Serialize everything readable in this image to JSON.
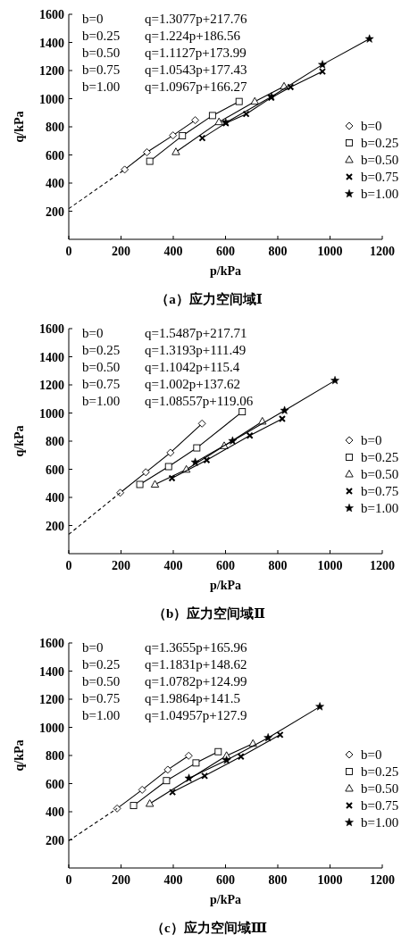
{
  "chart_data": [
    {
      "type": "line",
      "title": "（a）应力空间域Ⅰ",
      "xlabel": "p/kPa",
      "ylabel": "q/kPa",
      "xlim": [
        0,
        1200
      ],
      "ylim": [
        0,
        1600
      ],
      "xticks": [
        0,
        200,
        400,
        600,
        800,
        1000,
        1200
      ],
      "yticks": [
        200,
        400,
        600,
        800,
        1000,
        1200,
        1400,
        1600
      ],
      "legend": "right",
      "annotations": [
        "b=0 q=1.3077p+217.76",
        "b=0.25 q=1.224p+186.56",
        "b=0.50 q=1.1127p+173.99",
        "b=0.75 q=1.0543p+177.43",
        "b=1.00 q=1.0967p+166.27"
      ],
      "series": [
        {
          "name": "b=0",
          "color": "#000000",
          "marker": "diamond",
          "x": [
            214,
            299,
            399,
            484
          ],
          "values": [
            496,
            619,
            739,
            847
          ]
        },
        {
          "name": "b=0.25",
          "color": "#000000",
          "marker": "square",
          "x": [
            310,
            435,
            550,
            652
          ],
          "values": [
            555,
            737,
            880,
            980
          ]
        },
        {
          "name": "b=0.50",
          "color": "#000000",
          "marker": "triangle",
          "x": [
            410,
            575,
            712,
            824
          ],
          "values": [
            621,
            834,
            980,
            1087
          ]
        },
        {
          "name": "b=0.75",
          "color": "#000000",
          "marker": "cross",
          "x": [
            511,
            601,
            679,
            775,
            849,
            971
          ],
          "values": [
            720,
            826,
            891,
            1007,
            1083,
            1193
          ]
        },
        {
          "name": "b=1.00",
          "color": "#000000",
          "marker": "star",
          "x": [
            601,
            776,
            971,
            1151
          ],
          "values": [
            830,
            1014,
            1242,
            1425
          ]
        },
        {
          "color": "#000000",
          "marker": "none",
          "line_style": "dashed",
          "x": [
            0,
            214
          ],
          "values": [
            218,
            496
          ]
        }
      ]
    },
    {
      "type": "line",
      "title": "（b）应力空间域Ⅱ",
      "xlabel": "p/kPa",
      "ylabel": "q/kPa",
      "xlim": [
        0,
        1200
      ],
      "ylim": [
        0,
        1600
      ],
      "xticks": [
        0,
        200,
        400,
        600,
        800,
        1000,
        1200
      ],
      "yticks": [
        200,
        400,
        600,
        800,
        1000,
        1200,
        1400,
        1600
      ],
      "legend": "right",
      "annotations": [
        "b=0 q=1.5487p+217.71",
        "b=0.25 q=1.3193p+111.49",
        "b=0.50 q=1.1042p+115.4",
        "b=0.75 q=1.002p+137.62",
        "b=1.00 q=1.08557p+119.06"
      ],
      "series": [
        {
          "name": "b=0",
          "color": "#000000",
          "marker": "diamond",
          "x": [
            197,
            295,
            389,
            510
          ],
          "values": [
            433,
            579,
            718,
            925
          ]
        },
        {
          "name": "b=0.25",
          "color": "#000000",
          "marker": "square",
          "x": [
            272,
            382,
            490,
            664
          ],
          "values": [
            492,
            619,
            752,
            1009
          ]
        },
        {
          "name": "b=0.50",
          "color": "#000000",
          "marker": "triangle",
          "x": [
            330,
            450,
            595,
            741
          ],
          "values": [
            492,
            598,
            766,
            940
          ]
        },
        {
          "name": "b=0.75",
          "color": "#000000",
          "marker": "cross",
          "x": [
            395,
            528,
            693,
            817
          ],
          "values": [
            536,
            665,
            840,
            959
          ]
        },
        {
          "name": "b=1.00",
          "color": "#000000",
          "marker": "star",
          "x": [
            484,
            627,
            826,
            1019
          ],
          "values": [
            650,
            802,
            1018,
            1231
          ]
        },
        {
          "color": "#000000",
          "marker": "none",
          "line_style": "dashed",
          "x": [
            0,
            197
          ],
          "values": [
            137,
            433
          ]
        }
      ]
    },
    {
      "type": "line",
      "title": "（c）应力空间域Ⅲ",
      "xlabel": "p/kPa",
      "ylabel": "q/kPa",
      "xlim": [
        0,
        1200
      ],
      "ylim": [
        0,
        1600
      ],
      "xticks": [
        0,
        200,
        400,
        600,
        800,
        1000,
        1200
      ],
      "yticks": [
        200,
        400,
        600,
        800,
        1000,
        1200,
        1400,
        1600
      ],
      "legend": "right",
      "annotations": [
        "b=0 q=1.3655p+165.96",
        "b=0.25 q=1.1831p+148.62",
        "b=0.50 q=1.0782p+124.99",
        "b=0.75 q=1.9864p+141.5",
        "b=1.00 q=1.04957p+127.9"
      ],
      "series": [
        {
          "name": "b=0",
          "color": "#000000",
          "marker": "diamond",
          "x": [
            185,
            281,
            379,
            459
          ],
          "values": [
            423,
            556,
            699,
            798
          ]
        },
        {
          "name": "b=0.25",
          "color": "#000000",
          "marker": "square",
          "x": [
            248,
            374,
            487,
            572
          ],
          "values": [
            444,
            621,
            747,
            827
          ]
        },
        {
          "name": "b=0.50",
          "color": "#000000",
          "marker": "triangle",
          "x": [
            310,
            604,
            705
          ],
          "values": [
            457,
            798,
            884
          ]
        },
        {
          "name": "b=0.75",
          "color": "#000000",
          "marker": "cross",
          "x": [
            397,
            520,
            659,
            809
          ],
          "values": [
            539,
            655,
            792,
            947
          ]
        },
        {
          "name": "b=1.00",
          "color": "#000000",
          "marker": "star",
          "x": [
            460,
            604,
            763,
            961
          ],
          "values": [
            638,
            766,
            926,
            1147
          ]
        },
        {
          "color": "#000000",
          "marker": "none",
          "line_style": "dashed",
          "x": [
            0,
            185
          ],
          "values": [
            194,
            423
          ]
        }
      ]
    }
  ]
}
